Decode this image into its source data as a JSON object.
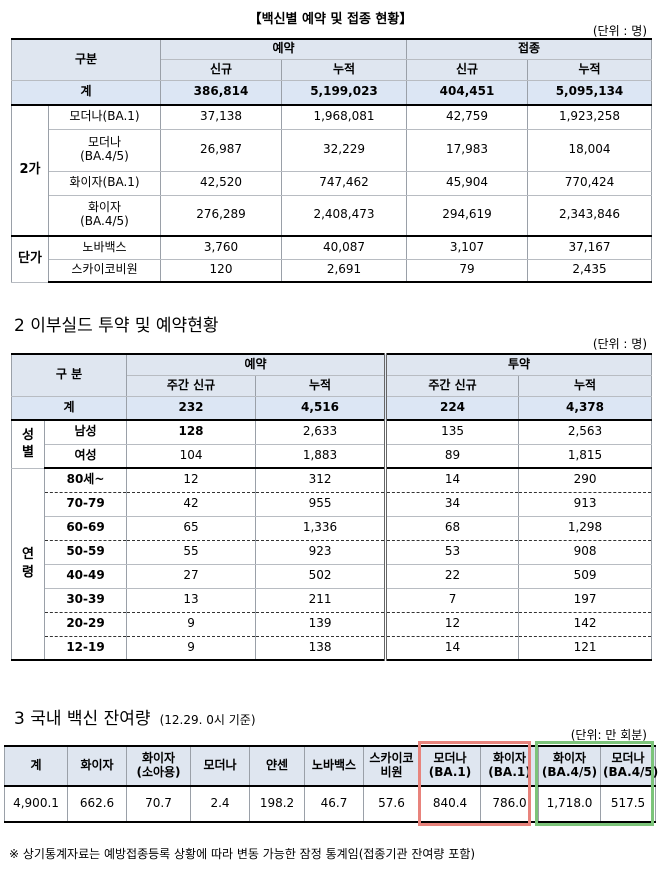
{
  "section1": {
    "title": "【백신별 예약 및 접종 현황】",
    "unit": "(단위 : 명)",
    "header": {
      "category": "구분",
      "reservation": "예약",
      "vaccination": "접종",
      "new": "신규",
      "cumulative": "누적"
    },
    "total": {
      "label": "계",
      "values": [
        "386,814",
        "5,199,023",
        "404,451",
        "5,095,134"
      ]
    },
    "group_bivalent": "2가",
    "group_monovalent": "단가",
    "rows": [
      {
        "label": "모더나(BA.1)",
        "values": [
          "37,138",
          "1,968,081",
          "42,759",
          "1,923,258"
        ]
      },
      {
        "label": "모더나\n(BA.4/5)",
        "values": [
          "26,987",
          "32,229",
          "17,983",
          "18,004"
        ]
      },
      {
        "label": "화이자(BA.1)",
        "values": [
          "42,520",
          "747,462",
          "45,904",
          "770,424"
        ]
      },
      {
        "label": "화이자\n(BA.4/5)",
        "values": [
          "276,289",
          "2,408,473",
          "294,619",
          "2,343,846"
        ]
      },
      {
        "label": "노바백스",
        "values": [
          "3,760",
          "40,087",
          "3,107",
          "37,167"
        ]
      },
      {
        "label": "스카이코비원",
        "values": [
          "120",
          "2,691",
          "79",
          "2,435"
        ]
      }
    ]
  },
  "section2": {
    "title": "2  이부실드 투약 및 예약현황",
    "unit": "(단위 : 명)",
    "header": {
      "category": "구 분",
      "reservation": "예약",
      "administration": "투약",
      "weekly_new": "주간 신규",
      "cumulative": "누적"
    },
    "total": {
      "label": "계",
      "values": [
        "232",
        "4,516",
        "224",
        "4,378"
      ]
    },
    "sex_label": "성\n별",
    "age_label": "연\n령",
    "sex_rows": [
      {
        "label": "남성",
        "values": [
          "128",
          "2,633",
          "135",
          "2,563"
        ]
      },
      {
        "label": "여성",
        "values": [
          "104",
          "1,883",
          "89",
          "1,815"
        ]
      }
    ],
    "age_rows": [
      {
        "label": "80세~",
        "values": [
          "12",
          "312",
          "14",
          "290"
        ]
      },
      {
        "label": "70-79",
        "values": [
          "42",
          "955",
          "34",
          "913"
        ]
      },
      {
        "label": "60-69",
        "values": [
          "65",
          "1,336",
          "68",
          "1,298"
        ]
      },
      {
        "label": "50-59",
        "values": [
          "55",
          "923",
          "53",
          "908"
        ]
      },
      {
        "label": "40-49",
        "values": [
          "27",
          "502",
          "22",
          "509"
        ]
      },
      {
        "label": "30-39",
        "values": [
          "13",
          "211",
          "7",
          "197"
        ]
      },
      {
        "label": "20-29",
        "values": [
          "9",
          "139",
          "12",
          "142"
        ]
      },
      {
        "label": "12-19",
        "values": [
          "9",
          "138",
          "14",
          "121"
        ]
      }
    ]
  },
  "section3": {
    "title": "3  국내 백신 잔여량",
    "title_note": "(12.29. 0시 기준)",
    "unit": "(단위: 만 회분)",
    "headers": [
      "계",
      "화이자",
      "화이자\n(소아용)",
      "모더나",
      "얀센",
      "노바백스",
      "스카이코\n비원",
      "모더나\n(BA.1)",
      "화이자\n(BA.1)",
      "화이자\n(BA.4/5)",
      "모더나\n(BA.4/5)"
    ],
    "values": [
      "4,900.1",
      "662.6",
      "70.7",
      "2.4",
      "198.2",
      "46.7",
      "57.6",
      "840.4",
      "786.0",
      "1,718.0",
      "517.5"
    ],
    "highlight_colors": {
      "ba1_box": "#e8837c",
      "ba45_box": "#7cc47a"
    }
  },
  "footnote": "※ 상기통계자료는 예방접종등록 상황에 따라 변동 가능한 잠정 통계임(접종기관 잔여량 포함)"
}
